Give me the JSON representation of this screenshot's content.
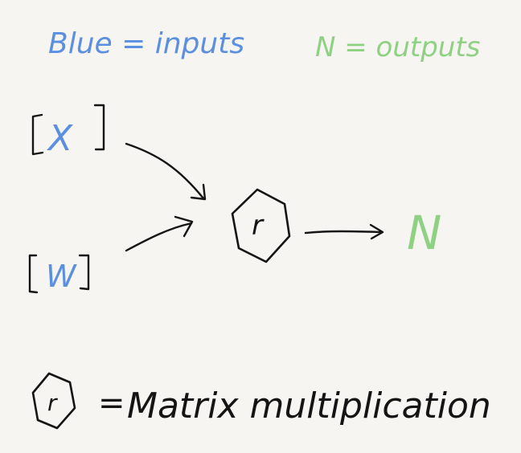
{
  "legend": {
    "inputs_label": "Blue = inputs",
    "outputs_label": "N = outputs"
  },
  "nodes": {
    "input_x": "X",
    "input_w": "W",
    "operation_symbol": "r",
    "output_n": "N"
  },
  "key": {
    "symbol": "r",
    "equals": "=",
    "description": "Matrix multiplication"
  },
  "colors": {
    "paper": "#f6f5f1",
    "ink": "#141414",
    "input_blue": "#5a8fe2",
    "output_green": "#8fd183"
  }
}
